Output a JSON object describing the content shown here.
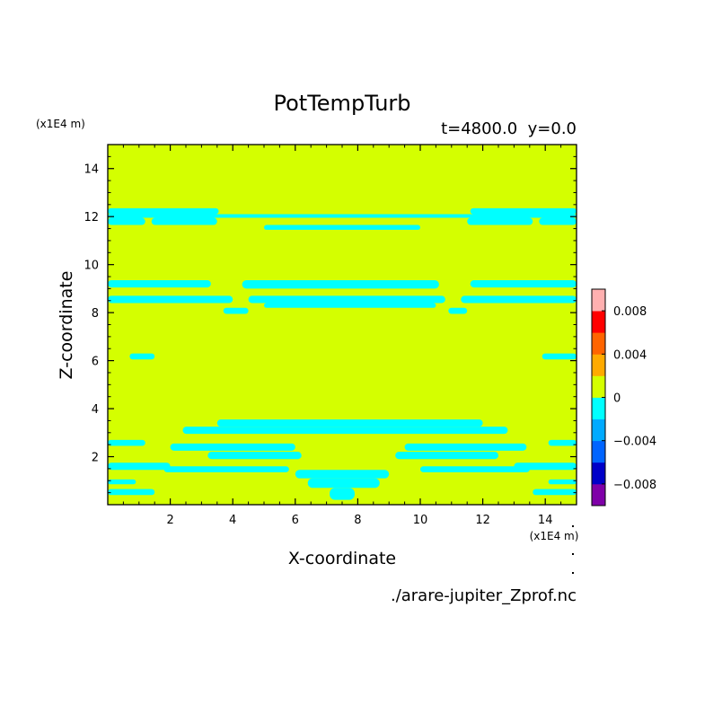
{
  "chart_data": {
    "type": "heatmap",
    "title": "PotTempTurb",
    "subtitle": "t=4800.0  y=0.0",
    "xlabel": "X-coordinate",
    "ylabel": "Z-coordinate",
    "x_unit": "(x1E4 m)",
    "y_unit": "(x1E4 m)",
    "source": "./arare-jupiter_Zprof.nc",
    "xlim": [
      0,
      15
    ],
    "ylim": [
      0,
      15
    ],
    "x_ticks": [
      2,
      4,
      6,
      8,
      10,
      12,
      14
    ],
    "y_ticks": [
      2,
      4,
      6,
      8,
      10,
      12,
      14
    ],
    "background_value": 0,
    "background_color": "#d4ff00",
    "negative_color": "#00ffff",
    "colorbar": {
      "min": -0.01,
      "max": 0.01,
      "colors": [
        "#7f00a8",
        "#0000c8",
        "#0064ff",
        "#00aaff",
        "#00ffff",
        "#d4ff00",
        "#ffaa00",
        "#ff6400",
        "#ff0000",
        "#ffb0b0"
      ],
      "tick_values": [
        -0.008,
        -0.004,
        0,
        0.004,
        0.008
      ],
      "tick_labels": [
        "−0.008",
        "−0.004",
        "0",
        "0.004",
        "0.008"
      ]
    },
    "negative_regions": [
      {
        "x": [
          0.0,
          3.55
        ],
        "z": [
          12.1,
          12.35
        ]
      },
      {
        "x": [
          11.6,
          15.0
        ],
        "z": [
          12.1,
          12.35
        ]
      },
      {
        "x": [
          0.0,
          15.0
        ],
        "z": [
          11.95,
          12.1
        ]
      },
      {
        "x": [
          0.0,
          1.2
        ],
        "z": [
          11.65,
          11.95
        ]
      },
      {
        "x": [
          1.4,
          3.5
        ],
        "z": [
          11.65,
          11.95
        ]
      },
      {
        "x": [
          11.5,
          13.6
        ],
        "z": [
          11.65,
          11.95
        ]
      },
      {
        "x": [
          13.8,
          15.0
        ],
        "z": [
          11.65,
          11.95
        ]
      },
      {
        "x": [
          5.0,
          10.0
        ],
        "z": [
          11.45,
          11.65
        ]
      },
      {
        "x": [
          0.0,
          3.3
        ],
        "z": [
          9.05,
          9.35
        ]
      },
      {
        "x": [
          4.3,
          10.6
        ],
        "z": [
          9.0,
          9.35
        ]
      },
      {
        "x": [
          11.6,
          15.0
        ],
        "z": [
          9.05,
          9.35
        ]
      },
      {
        "x": [
          0.0,
          4.0
        ],
        "z": [
          8.4,
          8.7
        ]
      },
      {
        "x": [
          4.5,
          10.8
        ],
        "z": [
          8.4,
          8.7
        ]
      },
      {
        "x": [
          11.3,
          15.0
        ],
        "z": [
          8.4,
          8.7
        ]
      },
      {
        "x": [
          5.0,
          10.5
        ],
        "z": [
          8.2,
          8.4
        ]
      },
      {
        "x": [
          3.7,
          4.5
        ],
        "z": [
          7.95,
          8.2
        ]
      },
      {
        "x": [
          10.9,
          11.5
        ],
        "z": [
          7.95,
          8.2
        ]
      },
      {
        "x": [
          0.7,
          1.5
        ],
        "z": [
          6.05,
          6.3
        ]
      },
      {
        "x": [
          13.9,
          15.0
        ],
        "z": [
          6.05,
          6.3
        ]
      },
      {
        "x": [
          3.5,
          12.0
        ],
        "z": [
          3.25,
          3.55
        ]
      },
      {
        "x": [
          2.4,
          12.8
        ],
        "z": [
          2.95,
          3.25
        ]
      },
      {
        "x": [
          0.0,
          1.2
        ],
        "z": [
          2.45,
          2.7
        ]
      },
      {
        "x": [
          14.1,
          15.0
        ],
        "z": [
          2.45,
          2.7
        ]
      },
      {
        "x": [
          2.0,
          6.0
        ],
        "z": [
          2.25,
          2.55
        ]
      },
      {
        "x": [
          9.5,
          13.4
        ],
        "z": [
          2.25,
          2.55
        ]
      },
      {
        "x": [
          0.0,
          2.0
        ],
        "z": [
          1.45,
          1.75
        ]
      },
      {
        "x": [
          3.2,
          6.2
        ],
        "z": [
          1.9,
          2.2
        ]
      },
      {
        "x": [
          9.2,
          12.5
        ],
        "z": [
          1.9,
          2.2
        ]
      },
      {
        "x": [
          13.0,
          15.0
        ],
        "z": [
          1.45,
          1.75
        ]
      },
      {
        "x": [
          1.8,
          5.8
        ],
        "z": [
          1.35,
          1.6
        ]
      },
      {
        "x": [
          10.0,
          13.5
        ],
        "z": [
          1.35,
          1.6
        ]
      },
      {
        "x": [
          0.0,
          0.9
        ],
        "z": [
          0.85,
          1.05
        ]
      },
      {
        "x": [
          14.1,
          15.0
        ],
        "z": [
          0.85,
          1.05
        ]
      },
      {
        "x": [
          0.0,
          1.5
        ],
        "z": [
          0.4,
          0.65
        ]
      },
      {
        "x": [
          13.6,
          15.0
        ],
        "z": [
          0.4,
          0.65
        ]
      },
      {
        "x": [
          6.0,
          9.0
        ],
        "z": [
          1.1,
          1.45
        ]
      },
      {
        "x": [
          6.4,
          8.7
        ],
        "z": [
          0.7,
          1.1
        ]
      },
      {
        "x": [
          7.1,
          7.9
        ],
        "z": [
          0.2,
          0.7
        ]
      }
    ]
  }
}
